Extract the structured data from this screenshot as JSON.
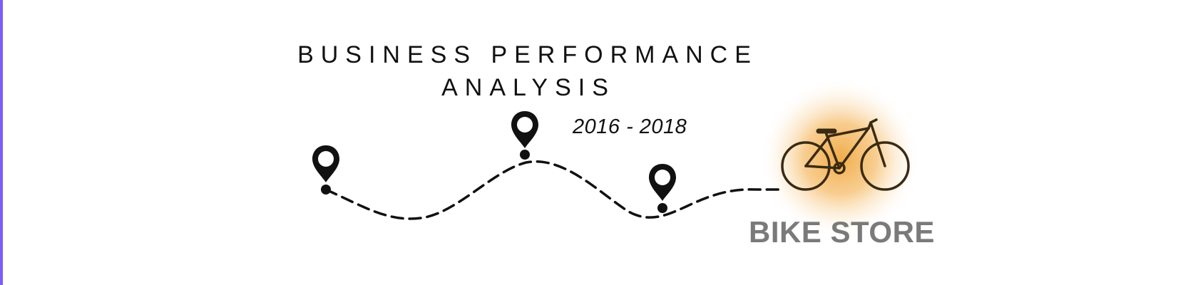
{
  "title": {
    "line1": "BUSINESS PERFORMANCE",
    "line2": "ANALYSIS"
  },
  "date_range": "2016 - 2018",
  "brand": {
    "name": "BIKE STORE",
    "icon": "bicycle-icon",
    "glow_color": "#f0a840",
    "text_color": "#7a7a7a"
  },
  "route": {
    "icon": "location-pin-icon",
    "stops": 3
  },
  "accent_color": "#7b5cff"
}
